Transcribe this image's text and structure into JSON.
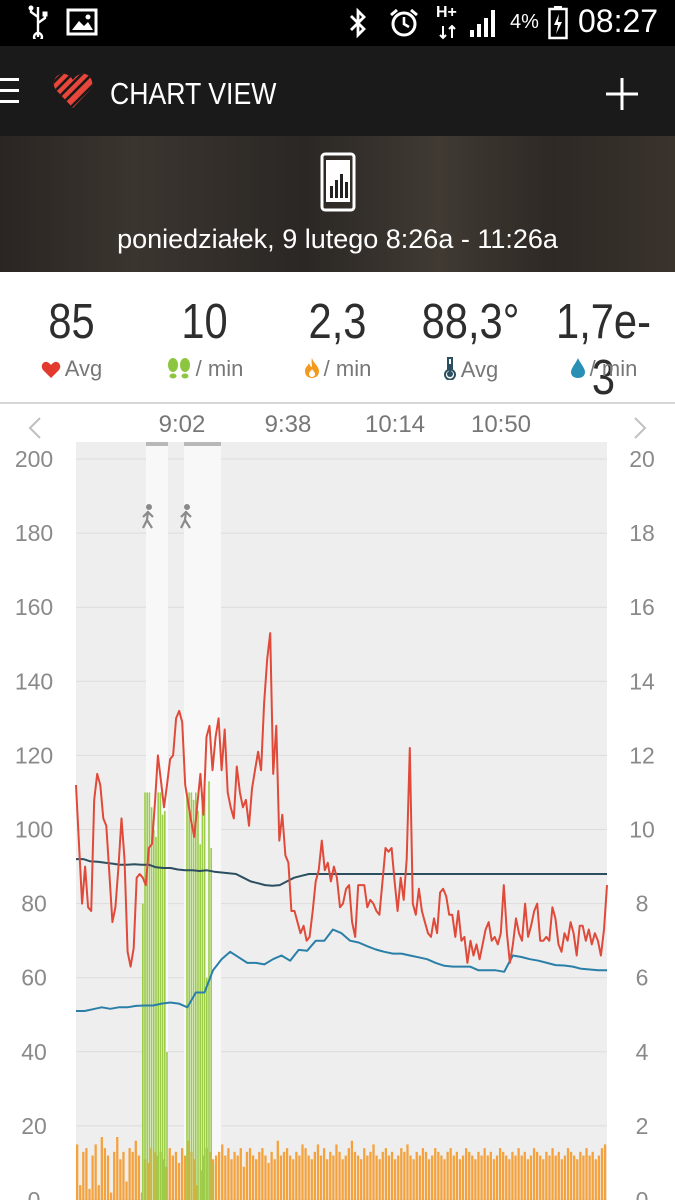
{
  "status_bar": {
    "battery": "4%",
    "time": "08:27",
    "network": "H+",
    "icons": [
      "usb-icon",
      "image-icon",
      "bluetooth-icon",
      "alarm-icon",
      "network-icon",
      "signal-icon",
      "battery-icon"
    ]
  },
  "app_bar": {
    "title": "CHART VIEW",
    "menu_icon": "menu-icon",
    "logo_icon": "heart-logo-icon",
    "add_icon": "plus-icon"
  },
  "banner": {
    "icon": "phone-chart-icon",
    "date_range": "poniedziałek, 9 lutego 8:26a - 11:26a"
  },
  "stats": [
    {
      "value": "85",
      "label": "Avg",
      "icon": "heart-icon",
      "icon_color": "#e23b2e"
    },
    {
      "value": "10",
      "label": "/ min",
      "icon": "footsteps-icon",
      "icon_color": "#8cc63f"
    },
    {
      "value": "2,3",
      "label": "/ min",
      "icon": "flame-icon",
      "icon_color": "#f39a1e"
    },
    {
      "value": "88,3°",
      "label": "Avg",
      "icon": "thermometer-icon",
      "icon_color": "#2b4f5f"
    },
    {
      "value": "1,7e-3",
      "label": "/ min",
      "icon": "drop-icon",
      "icon_color": "#2a8fb5"
    }
  ],
  "chart_data": {
    "type": "line",
    "nav": {
      "prev_icon": "chevron-left-icon",
      "next_icon": "chevron-right-icon"
    },
    "x_ticks": [
      "9:02",
      "9:38",
      "10:14",
      "10:50"
    ],
    "y_left": {
      "ticks": [
        "200",
        "180",
        "160",
        "140",
        "120",
        "100",
        "80",
        "60",
        "40",
        "20",
        "0"
      ],
      "range": [
        0,
        200
      ]
    },
    "y_right": {
      "ticks": [
        "20",
        "18",
        "16",
        "14",
        "12",
        "10",
        "8",
        "6",
        "4",
        "2",
        "0"
      ],
      "range": [
        0,
        20
      ]
    },
    "activity_markers": [
      {
        "icon": "walking-icon"
      },
      {
        "icon": "walking-icon"
      }
    ],
    "colors": {
      "heart_rate": "#e04a3a",
      "temperature_top": "#2b4f5f",
      "temperature_lower": "#2a7fa8",
      "steps": "#9ccc4a",
      "calories": "#f4a23d",
      "plot_bg": "#eeeeee"
    },
    "series": [
      {
        "key": "heart_rate",
        "values": [
          112,
          96,
          80,
          90,
          79,
          78,
          108,
          115,
          112,
          103,
          101,
          88,
          75,
          79,
          90,
          103,
          92,
          67,
          63,
          68,
          87,
          88,
          87,
          85,
          95,
          96,
          107,
          120,
          113,
          106,
          112,
          119,
          120,
          130,
          132,
          129,
          112,
          107,
          102,
          98,
          107,
          115,
          104,
          125,
          128,
          116,
          125,
          130,
          116,
          127,
          110,
          106,
          103,
          117,
          110,
          106,
          108,
          101,
          111,
          116,
          121,
          116,
          134,
          146,
          153,
          115,
          128,
          97,
          104,
          93,
          91,
          78,
          78,
          75,
          72,
          74,
          70,
          71,
          78,
          86,
          89,
          97,
          89,
          91,
          86,
          90,
          87,
          79,
          80,
          84,
          85,
          75,
          71,
          85,
          85,
          85,
          79,
          81,
          80,
          78,
          77,
          86,
          95,
          94,
          95,
          86,
          78,
          87,
          81,
          92,
          122,
          80,
          77,
          84,
          78,
          75,
          72,
          71,
          76,
          72,
          83,
          84,
          82,
          77,
          77,
          71,
          78,
          70,
          71,
          64,
          70,
          66,
          69,
          65,
          69,
          73,
          75,
          70,
          71,
          69,
          72,
          85,
          72,
          64,
          69,
          76,
          72,
          70,
          80,
          71,
          74,
          78,
          80,
          70,
          70,
          71,
          70,
          79,
          76,
          69,
          67,
          72,
          70,
          75,
          72,
          66,
          74,
          74,
          70,
          73,
          69,
          72,
          70,
          66,
          73,
          85
        ]
      },
      {
        "key": "temperature_top",
        "values": [
          92,
          92,
          91.4,
          91.3,
          91,
          90.8,
          90.5,
          90.5,
          90.6,
          90.5,
          90.5,
          89.8,
          89.6,
          89.6,
          89.2,
          89,
          89,
          88.8,
          89,
          88.6,
          88.4,
          88.2,
          88,
          87,
          86,
          85.5,
          85,
          84.8,
          85,
          86,
          87,
          87.5,
          88,
          88,
          88,
          88,
          88,
          88,
          88,
          88,
          88,
          88,
          88,
          88,
          88,
          88,
          88,
          88,
          88,
          88,
          88,
          88,
          88,
          88,
          88,
          88,
          88,
          88,
          88,
          88,
          88,
          88,
          88,
          88,
          88,
          88,
          88,
          88,
          88,
          88,
          88,
          88,
          88,
          88
        ]
      },
      {
        "key": "temperature_lower",
        "values": [
          51,
          51,
          51.5,
          52,
          51.6,
          52,
          52,
          52.4,
          52.5,
          52.5,
          53,
          53.3,
          53,
          52,
          56,
          56,
          62,
          65,
          67,
          65.5,
          64,
          64,
          63.6,
          65,
          66,
          64.6,
          67.5,
          67.3,
          70,
          70,
          73,
          72,
          70,
          69.5,
          68.5,
          67.6,
          67,
          66.5,
          66.5,
          66,
          65.5,
          65,
          64,
          63.2,
          63,
          63,
          63,
          62,
          62,
          62,
          61.6,
          66,
          65.6,
          65,
          64.6,
          64,
          63.4,
          63.3,
          63,
          62.4,
          62.2,
          62,
          62
        ]
      },
      {
        "key": "steps",
        "values": [
          8,
          11,
          11,
          11,
          10.6,
          10,
          9.8,
          11,
          11,
          10.4,
          10.5,
          4,
          0,
          11,
          11,
          11,
          10.8,
          11,
          10.5,
          9.6,
          11,
          11.2,
          6,
          11.3,
          9.5,
          1,
          0,
          0
        ]
      },
      {
        "key": "calories",
        "values": [
          1.5,
          0.4,
          1.3,
          1.4,
          0.3,
          1.2,
          1.5,
          0.4,
          1.7,
          1.4,
          1.2,
          0.2,
          1.3,
          1.7,
          1.1,
          1.3,
          0.5,
          1.4,
          1.3,
          1.6,
          1.2,
          0.2,
          1.1,
          1.0,
          1.4,
          1.3,
          1.2,
          1.3,
          1.1,
          0.9,
          1.4,
          1.2,
          1.3,
          1.0,
          1.4,
          1.2,
          1.6,
          1.3,
          1.1,
          0.4,
          0.8,
          1.2,
          1.4,
          1.3,
          1.1,
          1.2,
          1.3,
          1.5,
          1.2,
          1.4,
          1.1,
          1.3,
          1.2,
          1.4,
          0.9,
          1.3,
          1.4,
          1.2,
          1.1,
          1.3,
          1.4,
          1.2,
          1.0,
          1.3,
          1.1,
          1.6,
          1.2,
          1.3,
          1.4,
          1.2,
          1.1,
          1.3,
          1.2,
          1.5,
          1.4,
          1.2,
          1.1,
          1.3,
          1.5,
          1.2,
          1.4,
          1.1,
          1.3,
          1.2,
          1.5,
          1.3,
          1.1,
          1.2,
          1.4,
          1.6,
          1.3,
          1.2,
          1.1,
          1.4,
          1.2,
          1.3,
          1.5,
          1.2,
          1.1,
          1.3,
          1.4,
          1.2,
          1.3,
          1.1,
          1.2,
          1.4,
          1.3,
          1.5,
          1.2,
          1.1,
          1.3,
          1.2,
          1.4,
          1.3,
          1.1,
          1.2,
          1.4,
          1.3,
          1.2,
          1.1,
          1.3,
          1.4,
          1.2,
          1.3,
          1.1,
          1.2,
          1.4,
          1.3,
          1.2,
          1.1,
          1.3,
          1.2,
          1.4,
          1.2,
          1.3,
          1.1,
          1.2,
          1.4,
          1.3,
          1.2,
          1.1,
          1.3,
          1.2,
          1.4,
          1.2,
          1.3,
          1.1,
          1.2,
          1.4,
          1.3,
          1.2,
          1.1,
          1.3,
          1.2,
          1.4,
          1.2,
          1.3,
          1.1,
          1.2,
          1.4,
          1.3,
          1.2,
          1.1,
          1.3,
          1.2,
          1.4,
          1.2,
          1.3,
          1.1,
          1.2,
          1.4,
          1.5
        ]
      }
    ]
  }
}
